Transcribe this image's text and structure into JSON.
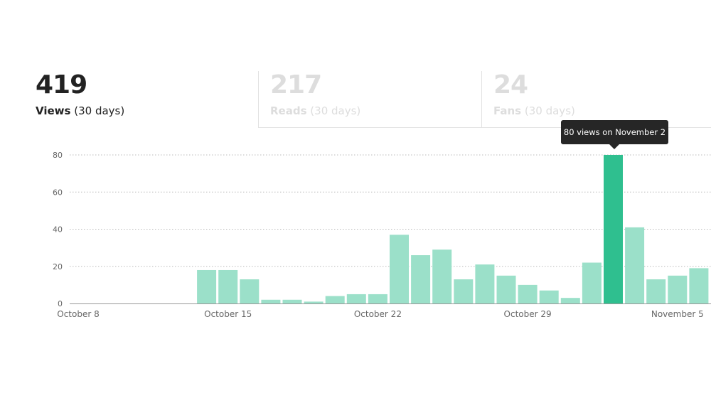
{
  "stats": [
    {
      "value": "419",
      "label": "Views",
      "period": "(30 days)",
      "active": true
    },
    {
      "value": "217",
      "label": "Reads",
      "period": "(30 days)",
      "active": false
    },
    {
      "value": "24",
      "label": "Fans",
      "period": "(30 days)",
      "active": false
    }
  ],
  "tooltip": "80 views on November 2",
  "colors": {
    "bar": "#9be0c9",
    "bar_active": "#2fbf8f",
    "grid": "#bbbbbb",
    "axis": "#999999"
  },
  "chart_data": {
    "type": "bar",
    "categories": [
      "Oct 8",
      "Oct 9",
      "Oct 10",
      "Oct 11",
      "Oct 12",
      "Oct 13",
      "Oct 14",
      "Oct 15",
      "Oct 16",
      "Oct 17",
      "Oct 18",
      "Oct 19",
      "Oct 20",
      "Oct 21",
      "Oct 22",
      "Oct 23",
      "Oct 24",
      "Oct 25",
      "Oct 26",
      "Oct 27",
      "Oct 28",
      "Oct 29",
      "Oct 30",
      "Oct 31",
      "Nov 1",
      "Nov 2",
      "Nov 3",
      "Nov 4",
      "Nov 5",
      "Nov 6"
    ],
    "values": [
      0,
      0,
      0,
      0,
      0,
      0,
      18,
      18,
      13,
      2,
      2,
      1,
      4,
      5,
      5,
      37,
      26,
      29,
      13,
      21,
      15,
      10,
      7,
      3,
      22,
      80,
      41,
      13,
      15,
      19
    ],
    "highlighted": "Nov 2",
    "xtick_labels": [
      {
        "index": 0,
        "label": "October 8"
      },
      {
        "index": 7,
        "label": "October 15"
      },
      {
        "index": 14,
        "label": "October 22"
      },
      {
        "index": 21,
        "label": "October 29"
      },
      {
        "index": 28,
        "label": "November 5"
      }
    ],
    "yticks": [
      0,
      20,
      40,
      60,
      80
    ],
    "ylim": [
      0,
      80
    ],
    "grid": true
  }
}
